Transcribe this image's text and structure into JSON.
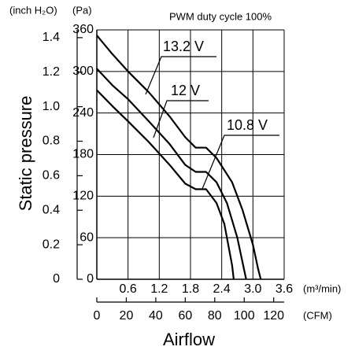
{
  "chart_data": {
    "type": "line",
    "title": "PWM duty cycle 100%",
    "y_label": "Static pressure",
    "x_label": "Airflow",
    "y_unit": "(Pa)",
    "y2_unit": "(inch H₂O)",
    "x_unit": "(m³/min)",
    "x2_unit": "(CFM)",
    "xlim": [
      0,
      3.6
    ],
    "xticks": [
      0.6,
      1.2,
      1.8,
      2.4,
      {
        "value": 3,
        "label": "3.0"
      },
      3.6
    ],
    "x2lim": [
      0,
      127.1
    ],
    "x2ticks": [
      0,
      20,
      40,
      60,
      80,
      100,
      120
    ],
    "ylim": [
      0,
      360
    ],
    "yticks": [
      0,
      60,
      120,
      180,
      240,
      300,
      360
    ],
    "y2lim": [
      0,
      1.445
    ],
    "y2ticks": [
      0,
      0.2,
      0.4,
      0.6,
      0.8,
      {
        "value": 1,
        "label": "1.0"
      },
      1.2,
      1.4
    ],
    "grid": true,
    "series": [
      {
        "name": "13.2 V",
        "color": "#000000",
        "x": [
          0,
          0.3,
          0.6,
          1.0,
          1.4,
          1.7,
          1.9,
          2.1,
          2.3,
          2.6,
          2.8,
          3.0,
          3.1,
          3.15
        ],
        "values": [
          352,
          325,
          300,
          270,
          235,
          205,
          190,
          190,
          175,
          140,
          100,
          50,
          15,
          0
        ]
      },
      {
        "name": "12 V",
        "color": "#000000",
        "x": [
          0,
          0.3,
          0.6,
          1.0,
          1.4,
          1.7,
          1.9,
          2.1,
          2.3,
          2.5,
          2.7,
          2.87
        ],
        "values": [
          304,
          280,
          260,
          228,
          195,
          165,
          155,
          155,
          140,
          110,
          60,
          0
        ]
      },
      {
        "name": "10.8 V",
        "color": "#000000",
        "x": [
          0,
          0.3,
          0.6,
          1.0,
          1.4,
          1.7,
          1.9,
          2.1,
          2.3,
          2.45,
          2.6,
          2.63
        ],
        "values": [
          273,
          250,
          228,
          198,
          165,
          138,
          130,
          130,
          110,
          80,
          20,
          0
        ]
      }
    ]
  }
}
